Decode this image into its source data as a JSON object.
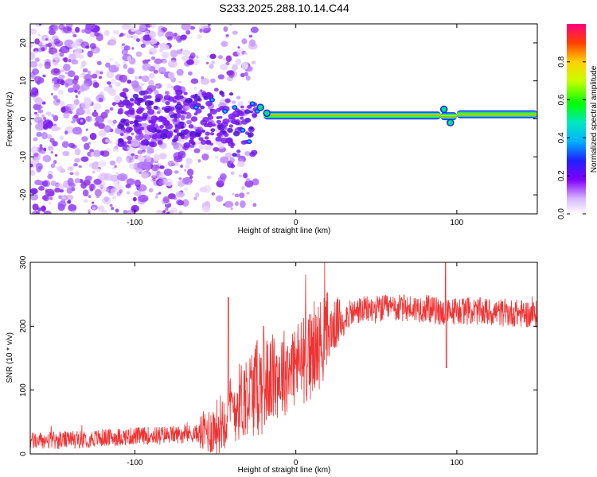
{
  "title": "S233.2025.288.10.14.C44",
  "spectrogram": {
    "type": "heatmap",
    "xlabel": "Height of straight line (km)",
    "ylabel": "Frequency (Hz)",
    "xlim": [
      -165,
      150
    ],
    "ylim": [
      -25,
      25
    ],
    "xticks": [
      -100,
      0,
      100
    ],
    "xtick_labels": [
      "-100",
      "0",
      "100"
    ],
    "yticks": [
      -20,
      -10,
      0,
      10,
      20
    ],
    "ytick_labels": [
      "-20",
      "-10",
      "0",
      "10",
      "20"
    ],
    "tone_frequency_hz": 0.8,
    "tone_segments": [
      {
        "x0": -20,
        "x1": 90,
        "f": 0.9,
        "amp": 0.95
      },
      {
        "x0": 90,
        "x1": 100,
        "f": 0.7,
        "amp": 0.6
      },
      {
        "x0": 100,
        "x1": 150,
        "f": 1.2,
        "amp": 0.9
      }
    ],
    "colorbar": {
      "label": "Normalized spectral amplitude",
      "range": [
        0,
        1
      ],
      "ticks": [
        0.0,
        0.2,
        0.4,
        0.6,
        0.8
      ],
      "tick_labels": [
        "0.0",
        "0.2",
        "0.4",
        "0.6",
        "0.8"
      ]
    }
  },
  "chart_data": [
    {
      "type": "heatmap",
      "title": "S233.2025.288.10.14.C44",
      "xlabel": "Height of straight line (km)",
      "ylabel": "Frequency (Hz)",
      "xlim": [
        -165,
        150
      ],
      "ylim": [
        -25,
        25
      ],
      "description_values": {
        "noise_region_km": [
          -165,
          -20
        ],
        "carrier_frequency_hz": 0.8,
        "carrier_start_km": -20
      }
    },
    {
      "type": "line",
      "xlabel": "Height of straight line (km)",
      "ylabel": "SNR (10 * v/v)",
      "xlim": [
        -165,
        150
      ],
      "ylim": [
        0,
        300
      ],
      "xticks": [
        -100,
        0,
        100
      ],
      "xtick_labels": [
        "-100",
        "0",
        "100"
      ],
      "yticks": [
        0,
        100,
        200,
        300
      ],
      "ytick_labels": [
        "0",
        "100",
        "200",
        "300"
      ],
      "color": "#ef3333",
      "series": [
        {
          "name": "SNR",
          "x": [
            -165,
            -140,
            -120,
            -100,
            -80,
            -60,
            -50,
            -40,
            -30,
            -20,
            -10,
            0,
            10,
            20,
            30,
            40,
            60,
            80,
            95,
            100,
            120,
            140,
            150
          ],
          "y": [
            20,
            22,
            25,
            28,
            30,
            32,
            40,
            70,
            95,
            110,
            125,
            140,
            155,
            190,
            215,
            225,
            228,
            228,
            220,
            225,
            222,
            220,
            218
          ]
        }
      ],
      "peaks": [
        {
          "x": -42,
          "y": 245
        },
        {
          "x": -20,
          "y": 200
        },
        {
          "x": 8,
          "y": 210
        },
        {
          "x": 93,
          "y": 300
        }
      ]
    }
  ]
}
